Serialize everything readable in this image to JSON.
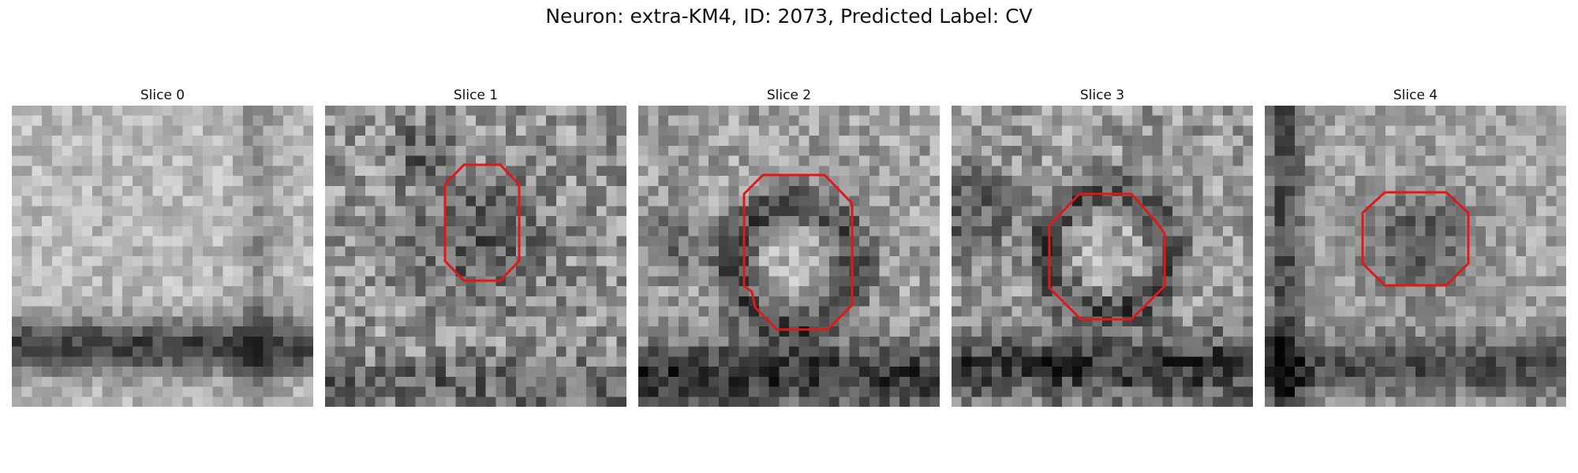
{
  "figure": {
    "title": "Neuron: extra-KM4, ID: 2073, Predicted Label: CV"
  },
  "colors": {
    "outline": "#e01818",
    "background": "#ffffff"
  },
  "panels": [
    {
      "title": "Slice 0"
    },
    {
      "title": "Slice 1"
    },
    {
      "title": "Slice 2"
    },
    {
      "title": "Slice 3"
    },
    {
      "title": "Slice 4"
    }
  ]
}
